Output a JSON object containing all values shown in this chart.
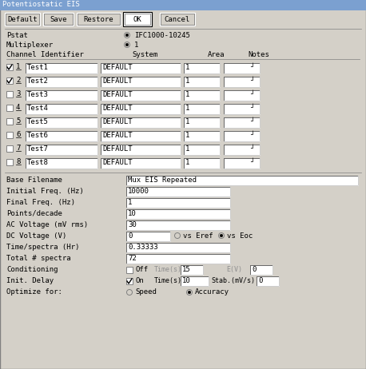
{
  "title": "Potentiostatic EIS",
  "bg_color": "#d4d0c8",
  "white": "#ffffff",
  "black": "#000000",
  "gray": "#808080",
  "dark_blue": "#6a8fc8",
  "buttons": [
    "Default",
    "Save",
    "Restore",
    "OK",
    "Cancel"
  ],
  "btn_x": [
    6,
    54,
    96,
    155,
    200
  ],
  "btn_w": [
    44,
    38,
    55,
    34,
    44
  ],
  "pstat_label": "Pstat",
  "pstat_value": "IFC1000-10245",
  "mux_label": "Multiplexer",
  "mux_value": "1",
  "channels": [
    {
      "num": "1",
      "checked": true,
      "id": "Test1",
      "system": "DEFAULT",
      "area": "1"
    },
    {
      "num": "2",
      "checked": true,
      "id": "Test2",
      "system": "DEFAULT",
      "area": "1"
    },
    {
      "num": "3",
      "checked": false,
      "id": "Test3",
      "system": "DEFAULT",
      "area": "1"
    },
    {
      "num": "4",
      "checked": false,
      "id": "Test4",
      "system": "DEFAULT",
      "area": "1"
    },
    {
      "num": "5",
      "checked": false,
      "id": "Test5",
      "system": "DEFAULT",
      "area": "1"
    },
    {
      "num": "6",
      "checked": false,
      "id": "Test6",
      "system": "DEFAULT",
      "area": "1"
    },
    {
      "num": "7",
      "checked": false,
      "id": "Test7",
      "system": "DEFAULT",
      "area": "1"
    },
    {
      "num": "8",
      "checked": false,
      "id": "Test8",
      "system": "DEFAULT",
      "area": "1"
    }
  ],
  "fields": [
    {
      "label": "Base Filename",
      "value": "Mux EIS Repeated",
      "wide": true
    },
    {
      "label": "Initial Freq. (Hz)",
      "value": "10000",
      "wide": false
    },
    {
      "label": "Final Freq. (Hz)",
      "value": "1",
      "wide": false
    },
    {
      "label": "Points/decade",
      "value": "10",
      "wide": false
    },
    {
      "label": "AC Voltage (mV rms)",
      "value": "30",
      "wide": false
    },
    {
      "label": "DC Voltage (V)",
      "value": "0",
      "wide": false,
      "special": "dc"
    },
    {
      "label": "Time/spectra (Hr)",
      "value": "0.33333",
      "wide": false
    },
    {
      "label": "Total # spectra",
      "value": "72",
      "wide": false
    }
  ],
  "ff": "monospace",
  "fs": 6.5
}
